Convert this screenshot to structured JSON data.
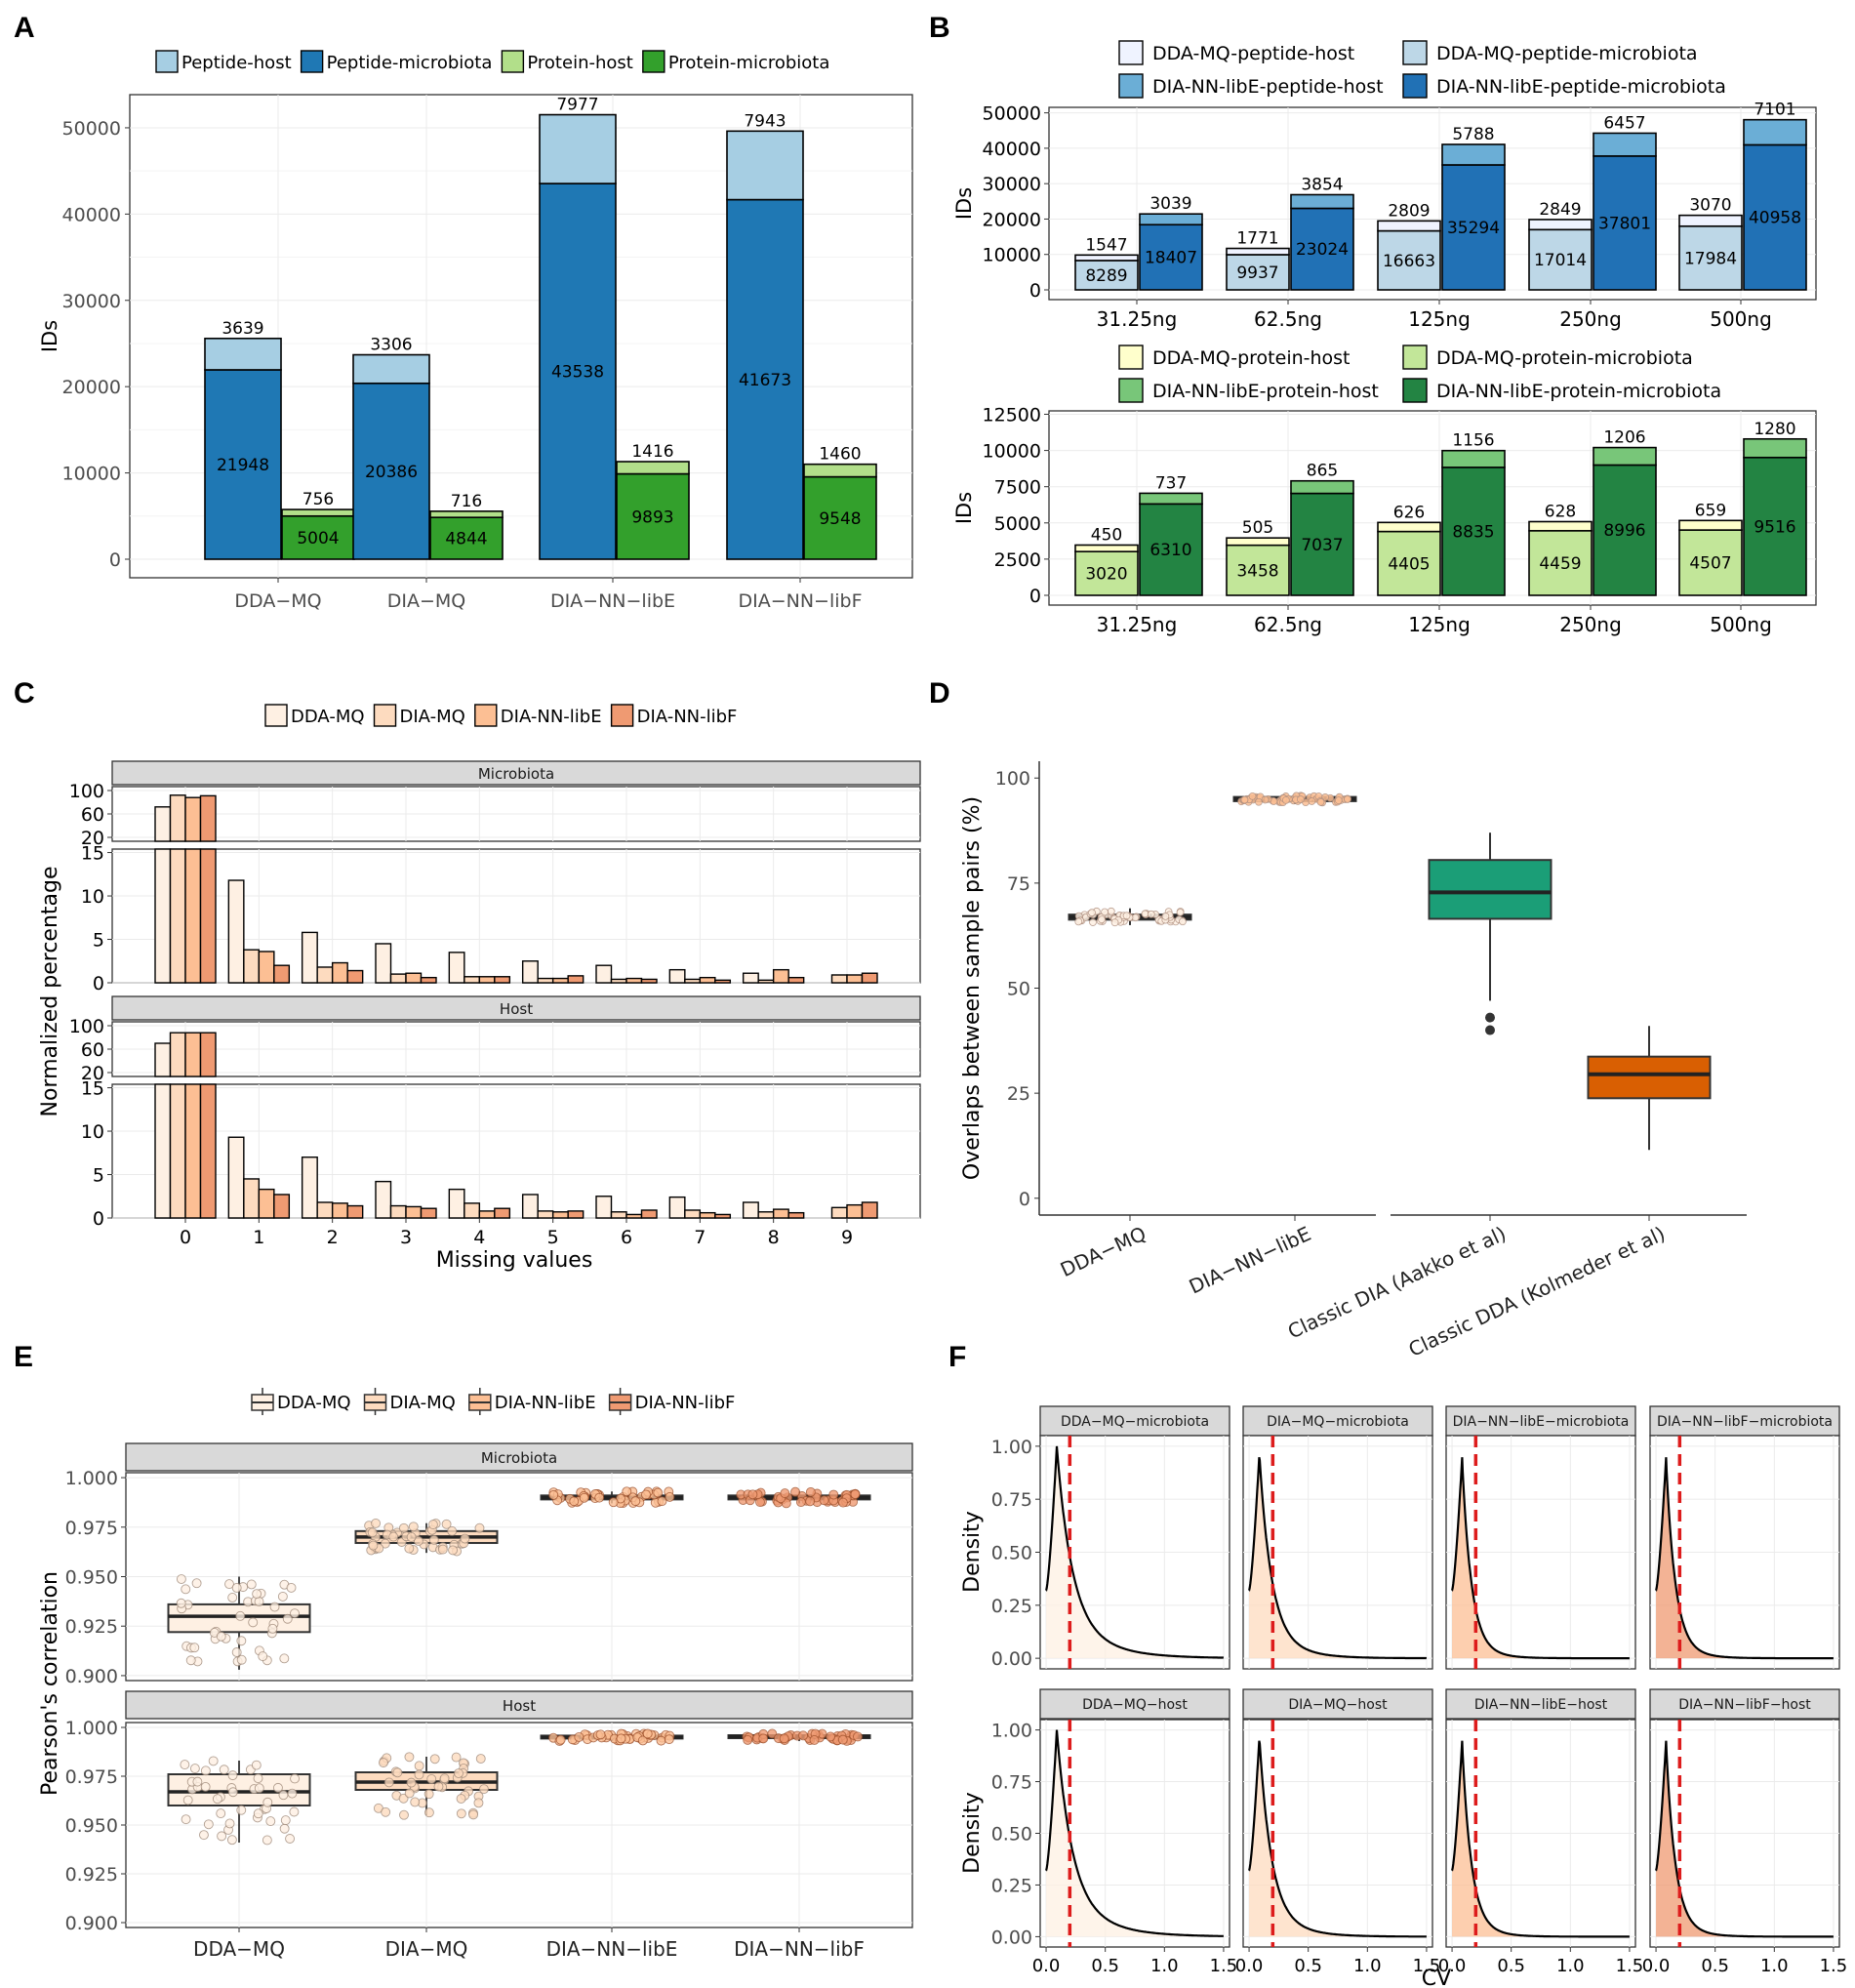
{
  "chart_data": [
    {
      "panel": "A",
      "type": "bar",
      "ylabel": "IDs",
      "categories": [
        "DDA−MQ",
        "DIA−MQ",
        "DIA−NN−libE",
        "DIA−NN−libF"
      ],
      "yticks": [
        "0",
        "10000",
        "20000",
        "30000",
        "40000",
        "50000"
      ],
      "ylim": [
        0,
        53500
      ],
      "legend": [
        "Peptide-host",
        "Peptide-microbiota",
        "Protein-host",
        "Protein-microbiota"
      ],
      "colors": {
        "peptide_host": "#a6cee3",
        "peptide_microbiota": "#1f78b4",
        "protein_host": "#b2df8a",
        "protein_microbiota": "#33a02c"
      },
      "peptide_microbiota": [
        21948,
        20386,
        43538,
        41673
      ],
      "peptide_host": [
        3639,
        3306,
        7977,
        7943
      ],
      "protein_microbiota": [
        5004,
        4844,
        9893,
        9548
      ],
      "protein_host": [
        756,
        716,
        1416,
        1460
      ]
    },
    {
      "panel": "B",
      "type": "bar",
      "ylabel": "IDs",
      "categories": [
        "31.25ng",
        "62.5ng",
        "125ng",
        "250ng",
        "500ng"
      ],
      "peptide": {
        "yticks": [
          "0",
          "10000",
          "20000",
          "30000",
          "40000",
          "50000"
        ],
        "ylim": [
          0,
          51000
        ],
        "legend": [
          "DDA-MQ-peptide-host",
          "DDA-MQ-peptide-microbiota",
          "DIA-NN-libE-peptide-host",
          "DIA-NN-libE-peptide-microbiota"
        ],
        "colors": {
          "dda_host": "#eff3ff",
          "dda_micro": "#bdd7e7",
          "dia_host": "#6baed6",
          "dia_micro": "#2171b5"
        },
        "dda_micro": [
          8289,
          9937,
          16663,
          17014,
          17984
        ],
        "dda_host": [
          1547,
          1771,
          2809,
          2849,
          3070
        ],
        "dia_micro": [
          18407,
          23024,
          35294,
          37801,
          40958
        ],
        "dia_host": [
          3039,
          3854,
          5788,
          6457,
          7101
        ]
      },
      "protein": {
        "yticks": [
          "0",
          "2500",
          "5000",
          "7500",
          "10000",
          "12500"
        ],
        "ylim": [
          0,
          12600
        ],
        "legend": [
          "DDA-MQ-protein-host",
          "DDA-MQ-protein-microbiota",
          "DIA-NN-libE-protein-host",
          "DIA-NN-libE-protein-microbiota"
        ],
        "colors": {
          "dda_host": "#ffffcc",
          "dda_micro": "#c2e699",
          "dia_host": "#78c679",
          "dia_micro": "#238443"
        },
        "dda_micro": [
          3020,
          3458,
          4405,
          4459,
          4507
        ],
        "dda_host": [
          450,
          505,
          626,
          628,
          659
        ],
        "dia_micro": [
          6310,
          7037,
          8835,
          8996,
          9516
        ],
        "dia_host": [
          737,
          865,
          1156,
          1206,
          1280
        ]
      }
    },
    {
      "panel": "C",
      "type": "bar",
      "xlabel": "Missing values",
      "ylabel": "Normalized percentage",
      "legend": [
        "DDA-MQ",
        "DIA-MQ",
        "DIA-NN-libE",
        "DIA-NN-libF"
      ],
      "colors": [
        "#fef0e3",
        "#fddbbf",
        "#fcbf94",
        "#ef9a72"
      ],
      "x": [
        0,
        1,
        2,
        3,
        4,
        5,
        6,
        7,
        8,
        9
      ],
      "upper_ticks": [
        "20",
        "60",
        "100"
      ],
      "lower_ticks": [
        "0",
        "5",
        "10",
        "15"
      ],
      "facets": [
        {
          "name": "Microbiota",
          "series": [
            [
              72,
              11.8,
              5.8,
              4.5,
              3.5,
              2.5,
              2.0,
              1.5,
              1.1,
              0.0
            ],
            [
              92,
              3.8,
              1.8,
              1.0,
              0.7,
              0.5,
              0.4,
              0.4,
              0.3,
              0.9
            ],
            [
              88,
              3.6,
              2.3,
              1.1,
              0.7,
              0.5,
              0.5,
              0.6,
              1.5,
              0.9
            ],
            [
              91,
              2.0,
              1.4,
              0.6,
              0.7,
              0.8,
              0.4,
              0.3,
              0.6,
              1.1
            ]
          ]
        },
        {
          "name": "Host",
          "series": [
            [
              70,
              9.3,
              7.0,
              4.2,
              3.3,
              2.7,
              2.5,
              2.4,
              1.8,
              0.0
            ],
            [
              88,
              4.5,
              1.8,
              1.4,
              1.7,
              0.8,
              0.7,
              0.9,
              0.7,
              1.2
            ],
            [
              88,
              3.3,
              1.7,
              1.3,
              0.8,
              0.7,
              0.4,
              0.6,
              1.0,
              1.5
            ],
            [
              88,
              2.7,
              1.4,
              1.1,
              1.1,
              0.8,
              0.9,
              0.4,
              0.6,
              1.8
            ]
          ]
        }
      ]
    },
    {
      "panel": "D",
      "type": "box",
      "ylabel": "Overlaps between sample pairs (%)",
      "yticks": [
        "0",
        "25",
        "50",
        "75",
        "100"
      ],
      "ylim": [
        -4,
        104
      ],
      "categories": [
        "DDA−MQ",
        "DIA−NN−libE",
        "Classic DIA (Aakko et al)",
        "Classic DDA (Kolmeder et al)"
      ],
      "boxes": [
        {
          "q1": 66.3,
          "median": 66.9,
          "q3": 67.5,
          "low": 65.0,
          "high": 69.0,
          "outliers": [],
          "fill": "#fef0e3",
          "points": true
        },
        {
          "q1": 94.5,
          "median": 95.0,
          "q3": 95.5,
          "low": 93.8,
          "high": 96.2,
          "outliers": [],
          "fill": "#fcbf94",
          "points": true
        },
        {
          "q1": 66.5,
          "median": 72.8,
          "q3": 80.5,
          "low": 47.0,
          "high": 87.0,
          "outliers": [
            43,
            40
          ],
          "fill": "#1b9e77",
          "points": false
        },
        {
          "q1": 23.8,
          "median": 29.5,
          "q3": 33.7,
          "low": 11.5,
          "high": 41.0,
          "outliers": [],
          "fill": "#d95f02",
          "points": false
        }
      ]
    },
    {
      "panel": "E",
      "type": "box",
      "ylabel": "Pearson's correlation",
      "legend": [
        "DDA-MQ",
        "DIA-MQ",
        "DIA-NN-libE",
        "DIA-NN-libF"
      ],
      "categories": [
        "DDA−MQ",
        "DIA−MQ",
        "DIA−NN−libE",
        "DIA−NN−libF"
      ],
      "fills": [
        "#fef0e3",
        "#fddbbf",
        "#fcbf94",
        "#ef9a72"
      ],
      "yticks": [
        "0.900",
        "0.925",
        "0.950",
        "0.975",
        "1.000"
      ],
      "ylim": [
        0.8975,
        1.0025
      ],
      "facets": [
        {
          "name": "Microbiota",
          "boxes": [
            {
              "q1": 0.922,
              "median": 0.93,
              "q3": 0.936,
              "low": 0.903,
              "high": 0.95
            },
            {
              "q1": 0.967,
              "median": 0.97,
              "q3": 0.973,
              "low": 0.962,
              "high": 0.977
            },
            {
              "q1": 0.989,
              "median": 0.99,
              "q3": 0.991,
              "low": 0.987,
              "high": 0.993
            },
            {
              "q1": 0.989,
              "median": 0.99,
              "q3": 0.991,
              "low": 0.987,
              "high": 0.993
            }
          ]
        },
        {
          "name": "Host",
          "boxes": [
            {
              "q1": 0.96,
              "median": 0.967,
              "q3": 0.976,
              "low": 0.941,
              "high": 0.983
            },
            {
              "q1": 0.968,
              "median": 0.972,
              "q3": 0.977,
              "low": 0.955,
              "high": 0.985
            },
            {
              "q1": 0.9945,
              "median": 0.995,
              "q3": 0.9958,
              "low": 0.993,
              "high": 0.997
            },
            {
              "q1": 0.9945,
              "median": 0.9953,
              "q3": 0.996,
              "low": 0.993,
              "high": 0.997
            }
          ]
        }
      ]
    },
    {
      "panel": "F",
      "type": "area",
      "xlabel": "CV",
      "ylabel": "Density",
      "xticks": [
        "0.0",
        "0.5",
        "1.0",
        "1.5"
      ],
      "yticks": [
        "0.00",
        "0.25",
        "0.50",
        "0.75",
        "1.00"
      ],
      "xlim": [
        -0.05,
        1.55
      ],
      "ylim": [
        -0.05,
        1.05
      ],
      "threshold": 0.2,
      "facets": [
        {
          "name": "DDA−MQ−microbiota",
          "fill": "#fef0e3",
          "scale": 1.0
        },
        {
          "name": "DIA−MQ−microbiota",
          "fill": "#fddbbf",
          "scale": 0.7
        },
        {
          "name": "DIA−NN−libE−microbiota",
          "fill": "#fcbf94",
          "scale": 0.45
        },
        {
          "name": "DIA−NN−libF−microbiota",
          "fill": "#ef9a72",
          "scale": 0.45
        },
        {
          "name": "DDA−MQ−host",
          "fill": "#fef0e3",
          "scale": 1.0
        },
        {
          "name": "DIA−MQ−host",
          "fill": "#fddbbf",
          "scale": 0.7
        },
        {
          "name": "DIA−NN−libE−host",
          "fill": "#fcbf94",
          "scale": 0.45
        },
        {
          "name": "DIA−NN−libF−host",
          "fill": "#ef9a72",
          "scale": 0.45
        }
      ]
    }
  ],
  "panel_letters": [
    "A",
    "B",
    "C",
    "D",
    "E",
    "F"
  ]
}
